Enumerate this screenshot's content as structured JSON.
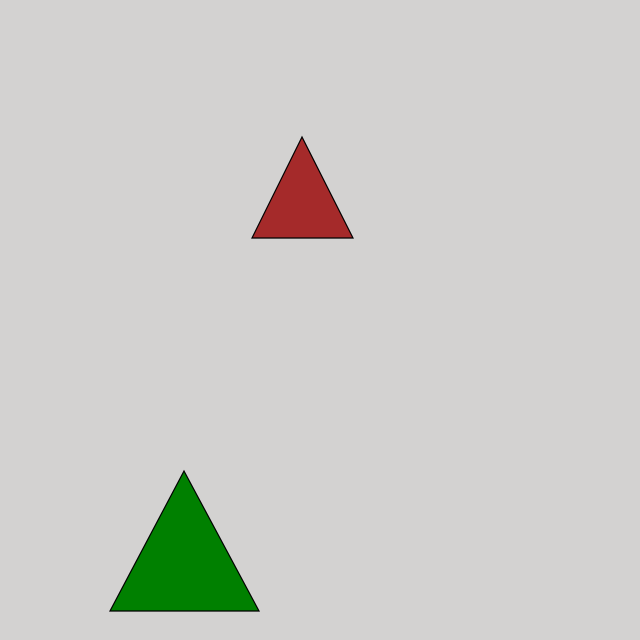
{
  "canvas": {
    "background": "#d3d2d1"
  },
  "shapes": [
    {
      "name": "red-triangle",
      "fill": "#a52a2a",
      "stroke": "#000000"
    },
    {
      "name": "green-triangle",
      "fill": "#008000",
      "stroke": "#000000"
    }
  ]
}
